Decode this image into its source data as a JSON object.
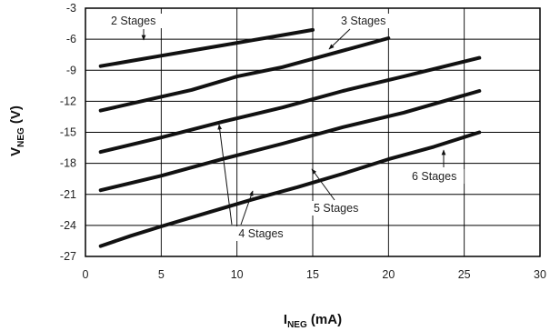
{
  "chart_data": {
    "type": "line",
    "xlabel": {
      "main": "I",
      "sub": "NEG",
      "unit": " (mA)"
    },
    "ylabel": {
      "main": "V",
      "sub": "NEG",
      "unit": " (V)"
    },
    "xlim": [
      0,
      30
    ],
    "ylim": [
      -27,
      -3
    ],
    "xticks": [
      0,
      5,
      10,
      15,
      20,
      25,
      30
    ],
    "yticks": [
      -3,
      -6,
      -9,
      -12,
      -15,
      -18,
      -21,
      -24,
      -27
    ],
    "grid": true,
    "legend": "none",
    "series": [
      {
        "name": "2 Stages",
        "x": [
          1,
          3,
          5,
          7,
          9,
          11,
          13,
          15
        ],
        "y": [
          -8.6,
          -8.1,
          -7.6,
          -7.1,
          -6.6,
          -6.1,
          -5.6,
          -5.1
        ]
      },
      {
        "name": "3 Stages",
        "x": [
          1,
          4,
          7,
          10,
          13,
          16,
          20
        ],
        "y": [
          -12.9,
          -11.9,
          -10.9,
          -9.6,
          -8.7,
          -7.5,
          -5.9
        ]
      },
      {
        "name": "4 Stages",
        "x": [
          1,
          5,
          9,
          13,
          17,
          21,
          26
        ],
        "y": [
          -16.9,
          -15.5,
          -14.0,
          -12.6,
          -11.0,
          -9.6,
          -7.8
        ]
      },
      {
        "name": "5 Stages",
        "x": [
          1,
          5,
          9,
          13,
          17,
          21,
          26
        ],
        "y": [
          -20.6,
          -19.2,
          -17.6,
          -16.1,
          -14.5,
          -13.1,
          -11.0
        ]
      },
      {
        "name": "6 Stages",
        "x": [
          1,
          3,
          5,
          8,
          11,
          14,
          17,
          20,
          23,
          26
        ],
        "y": [
          -26.0,
          -25.0,
          -24.1,
          -22.8,
          -21.5,
          -20.3,
          -19.0,
          -17.6,
          -16.4,
          -15.0
        ]
      }
    ],
    "annotations": [
      {
        "label": "2 Stages"
      },
      {
        "label": "3 Stages"
      },
      {
        "label": "4 Stages"
      },
      {
        "label": "5 Stages"
      },
      {
        "label": "6 Stages"
      }
    ]
  }
}
